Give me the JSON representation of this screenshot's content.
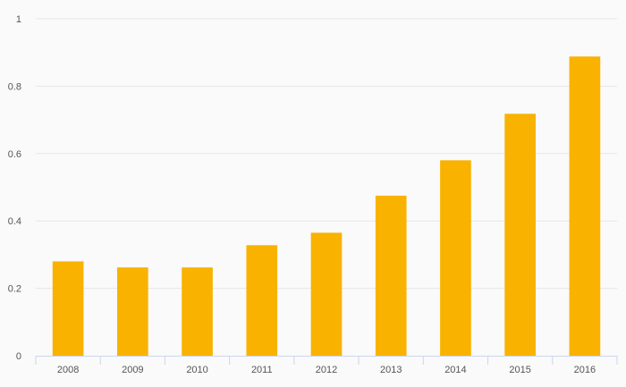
{
  "chart_data": {
    "type": "bar",
    "categories": [
      "2008",
      "2009",
      "2010",
      "2011",
      "2012",
      "2013",
      "2014",
      "2015",
      "2016"
    ],
    "values": [
      0.28,
      0.262,
      0.262,
      0.328,
      0.365,
      0.475,
      0.58,
      0.718,
      0.888
    ],
    "yticks": [
      "0",
      "0.2",
      "0.4",
      "0.6",
      "0.8",
      "1"
    ],
    "ylim": [
      0,
      1
    ],
    "grid": true,
    "bar_color": "#f9b200",
    "grid_color": "#e6e6e6",
    "axis_color": "#ccd6eb",
    "background_color": "#fafafa"
  }
}
